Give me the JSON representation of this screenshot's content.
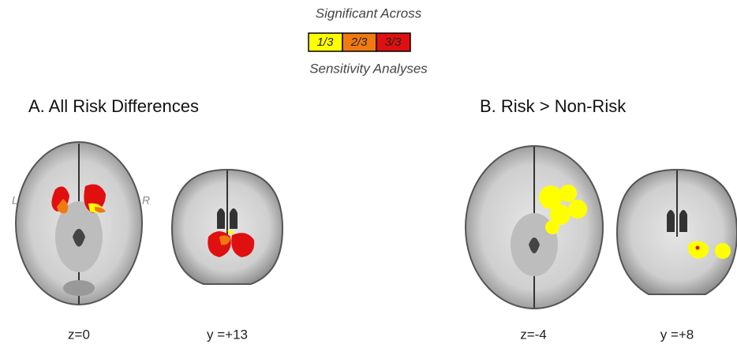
{
  "legend": {
    "title": "Significant Across",
    "items": [
      "1/3",
      "2/3",
      "3/3"
    ],
    "subtitle": "Sensitivity Analyses"
  },
  "panels": [
    {
      "title": "A. All Risk Differences",
      "side_labels": [
        "L",
        "R"
      ],
      "slices": [
        "z=0",
        "y =+13"
      ]
    },
    {
      "title": "B. Risk > Non-Risk",
      "slices": [
        "z=-4",
        "y =+8"
      ]
    }
  ]
}
